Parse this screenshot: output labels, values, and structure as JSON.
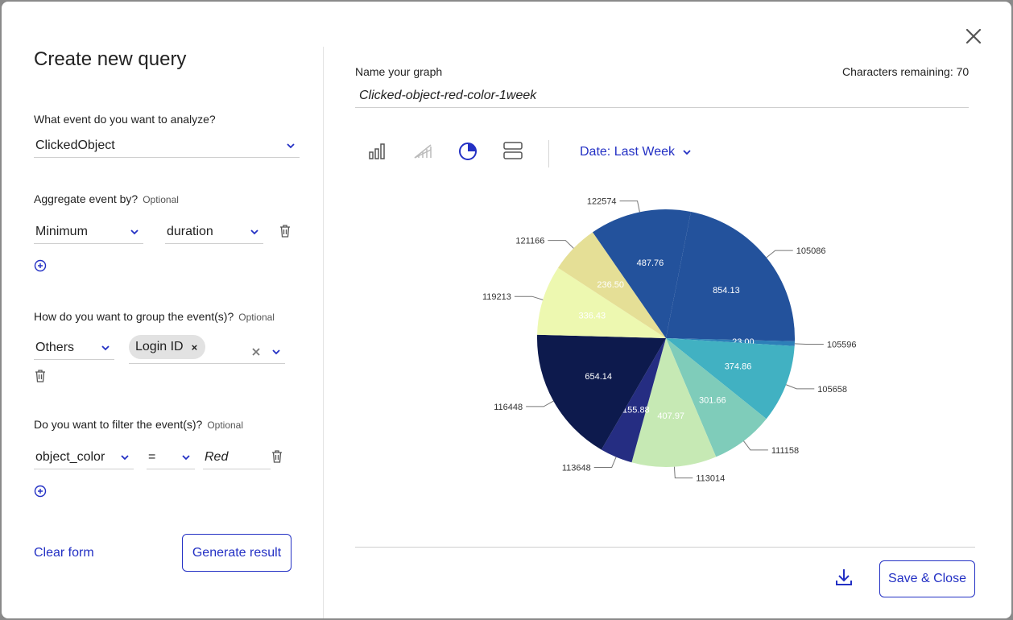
{
  "modal": {
    "title": "Create new query"
  },
  "query": {
    "event_question": "What event do you want to analyze?",
    "event_value": "ClickedObject",
    "aggregate_question": "Aggregate event by?",
    "aggregate_optional": "Optional",
    "aggregate_function": "Minimum",
    "aggregate_field": "duration",
    "group_question": "How do you want to group the event(s)?",
    "group_optional": "Optional",
    "group_value": "Others",
    "group_chip": "Login ID",
    "filter_question": "Do you want to filter the event(s)?",
    "filter_optional": "Optional",
    "filter_field": "object_color",
    "filter_operator": "=",
    "filter_value": "Red",
    "clear_label": "Clear form",
    "generate_label": "Generate result"
  },
  "graph": {
    "name_label": "Name your graph",
    "chars_remaining": "Characters remaining: 70",
    "name_value": "Clicked-object-red-color-1week",
    "date_label": "Date: Last Week",
    "save_label": "Save & Close"
  },
  "icons": {
    "close": "close-icon",
    "chevron": "chevron-down-icon",
    "trash": "trash-icon",
    "add": "plus-circle-icon",
    "bar_chart": "bar-chart-icon",
    "line_chart": "line-chart-icon",
    "pie_chart": "pie-chart-icon",
    "table_view": "table-view-icon",
    "download": "download-icon"
  },
  "colors": {
    "accent": "#2330c4"
  },
  "chart_data": {
    "type": "pie",
    "slices": [
      {
        "label": "105086",
        "value": 854.13,
        "color": "#23529c"
      },
      {
        "label": "105596",
        "value": 23.0,
        "color": "#2d7fb8"
      },
      {
        "label": "105658",
        "value": 374.86,
        "color": "#41b1c2"
      },
      {
        "label": "111158",
        "value": 301.66,
        "color": "#7fccba"
      },
      {
        "label": "113014",
        "value": 407.97,
        "color": "#c6e9b4"
      },
      {
        "label": "113648",
        "value": 155.88,
        "color": "#252d82"
      },
      {
        "label": "116448",
        "value": 654.14,
        "color": "#0d1a4d"
      },
      {
        "label": "119213",
        "value": 336.43,
        "color": "#edf8b0"
      },
      {
        "label": "121166",
        "value": 236.5,
        "color": "#e5df96"
      },
      {
        "label": "122574",
        "value": 487.76,
        "color": "#23529c"
      }
    ]
  }
}
